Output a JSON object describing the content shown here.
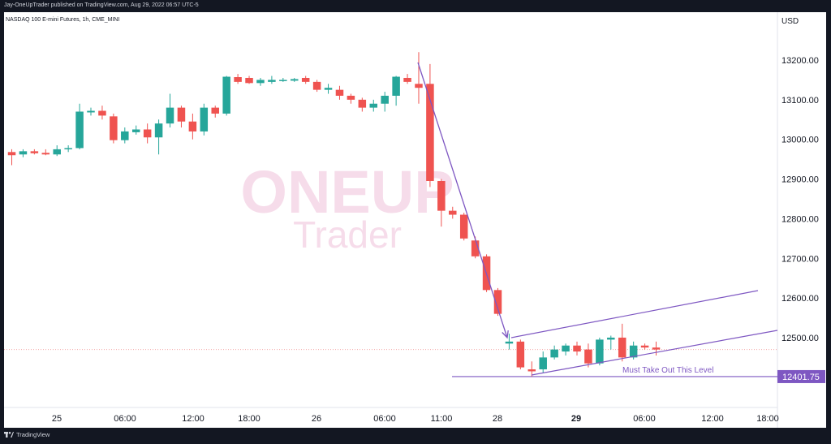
{
  "header": {
    "publish_text": "Jay-OneUpTrader published on TradingView.com, Aug 29, 2022 06:57 UTC-5"
  },
  "footer": {
    "brand": "TradingView"
  },
  "colors": {
    "up": "#26a69a",
    "down": "#ef5350",
    "annotation": "#7e57c2",
    "watermark": "#f3d6e6",
    "dotted_level": "#f4a9a9"
  },
  "watermark": {
    "line1": "ONEUP",
    "line2": "Trader"
  },
  "chart_data": {
    "type": "candlestick",
    "title": "NASDAQ 100 E-mini Futures, 1h, CME_MINI",
    "currency": "USD",
    "ylim": [
      12386,
      13300
    ],
    "y_ticks": [
      "13200.00",
      "13100.00",
      "13000.00",
      "12900.00",
      "12800.00",
      "12700.00",
      "12600.00",
      "12500.00"
    ],
    "x_ticks": [
      "25",
      "06:00",
      "12:00",
      "18:00",
      "26",
      "06:00",
      "11:00",
      "28",
      "29",
      "06:00",
      "12:00",
      "18:00"
    ],
    "x_tick_bold": [
      false,
      false,
      false,
      false,
      false,
      false,
      false,
      false,
      true,
      false,
      false,
      false
    ],
    "level_label": "12401.75",
    "level_value": 12401.75,
    "dotted_level_value": 12470,
    "annotation_text": "Must Take Out This Level",
    "candles": [
      {
        "o": 12968,
        "h": 12975,
        "l": 12935,
        "c": 12960
      },
      {
        "o": 12962,
        "h": 12975,
        "l": 12955,
        "c": 12970
      },
      {
        "o": 12970,
        "h": 12975,
        "l": 12962,
        "c": 12965
      },
      {
        "o": 12966,
        "h": 12975,
        "l": 12960,
        "c": 12962
      },
      {
        "o": 12962,
        "h": 12985,
        "l": 12958,
        "c": 12975
      },
      {
        "o": 12975,
        "h": 12985,
        "l": 12968,
        "c": 12978
      },
      {
        "o": 12978,
        "h": 13090,
        "l": 12975,
        "c": 13070
      },
      {
        "o": 13068,
        "h": 13080,
        "l": 13060,
        "c": 13072
      },
      {
        "o": 13072,
        "h": 13085,
        "l": 13050,
        "c": 13060
      },
      {
        "o": 13058,
        "h": 13065,
        "l": 12990,
        "c": 12998
      },
      {
        "o": 12998,
        "h": 13030,
        "l": 12990,
        "c": 13020
      },
      {
        "o": 13018,
        "h": 13035,
        "l": 13012,
        "c": 13025
      },
      {
        "o": 13025,
        "h": 13040,
        "l": 12990,
        "c": 13005
      },
      {
        "o": 13005,
        "h": 13050,
        "l": 12962,
        "c": 13040
      },
      {
        "o": 13040,
        "h": 13115,
        "l": 13030,
        "c": 13080
      },
      {
        "o": 13080,
        "h": 13085,
        "l": 13030,
        "c": 13045
      },
      {
        "o": 13045,
        "h": 13065,
        "l": 13000,
        "c": 13020
      },
      {
        "o": 13020,
        "h": 13090,
        "l": 13010,
        "c": 13080
      },
      {
        "o": 13080,
        "h": 13085,
        "l": 13055,
        "c": 13065
      },
      {
        "o": 13065,
        "h": 13160,
        "l": 13060,
        "c": 13158
      },
      {
        "o": 13157,
        "h": 13165,
        "l": 13140,
        "c": 13145
      },
      {
        "o": 13155,
        "h": 13160,
        "l": 13140,
        "c": 13142
      },
      {
        "o": 13142,
        "h": 13155,
        "l": 13135,
        "c": 13150
      },
      {
        "o": 13145,
        "h": 13160,
        "l": 13140,
        "c": 13150
      },
      {
        "o": 13150,
        "h": 13155,
        "l": 13145,
        "c": 13150
      },
      {
        "o": 13148,
        "h": 13155,
        "l": 13145,
        "c": 13152
      },
      {
        "o": 13155,
        "h": 13160,
        "l": 13140,
        "c": 13145
      },
      {
        "o": 13145,
        "h": 13150,
        "l": 13120,
        "c": 13125
      },
      {
        "o": 13125,
        "h": 13140,
        "l": 13115,
        "c": 13130
      },
      {
        "o": 13125,
        "h": 13135,
        "l": 13100,
        "c": 13110
      },
      {
        "o": 13110,
        "h": 13115,
        "l": 13090,
        "c": 13100
      },
      {
        "o": 13100,
        "h": 13105,
        "l": 13070,
        "c": 13080
      },
      {
        "o": 13080,
        "h": 13100,
        "l": 13070,
        "c": 13090
      },
      {
        "o": 13090,
        "h": 13120,
        "l": 13070,
        "c": 13110
      },
      {
        "o": 13110,
        "h": 13160,
        "l": 13085,
        "c": 13158
      },
      {
        "o": 13155,
        "h": 13165,
        "l": 13140,
        "c": 13145
      },
      {
        "o": 13140,
        "h": 13220,
        "l": 13090,
        "c": 13130
      },
      {
        "o": 13140,
        "h": 13190,
        "l": 12880,
        "c": 12895
      },
      {
        "o": 12895,
        "h": 12900,
        "l": 12780,
        "c": 12820
      },
      {
        "o": 12820,
        "h": 12830,
        "l": 12800,
        "c": 12810
      },
      {
        "o": 12810,
        "h": 12815,
        "l": 12745,
        "c": 12750
      },
      {
        "o": 12745,
        "h": 12755,
        "l": 12700,
        "c": 12705
      },
      {
        "o": 12705,
        "h": 12710,
        "l": 12615,
        "c": 12620
      },
      {
        "o": 12620,
        "h": 12625,
        "l": 12555,
        "c": 12560
      },
      {
        "o": 12485,
        "h": 12510,
        "l": 12470,
        "c": 12490
      },
      {
        "o": 12490,
        "h": 12495,
        "l": 12420,
        "c": 12425
      },
      {
        "o": 12420,
        "h": 12440,
        "l": 12402,
        "c": 12415
      },
      {
        "o": 12420,
        "h": 12465,
        "l": 12410,
        "c": 12450
      },
      {
        "o": 12450,
        "h": 12480,
        "l": 12445,
        "c": 12470
      },
      {
        "o": 12465,
        "h": 12485,
        "l": 12455,
        "c": 12480
      },
      {
        "o": 12480,
        "h": 12490,
        "l": 12455,
        "c": 12465
      },
      {
        "o": 12470,
        "h": 12485,
        "l": 12425,
        "c": 12435
      },
      {
        "o": 12435,
        "h": 12500,
        "l": 12430,
        "c": 12495
      },
      {
        "o": 12495,
        "h": 12505,
        "l": 12470,
        "c": 12500
      },
      {
        "o": 12500,
        "h": 12535,
        "l": 12440,
        "c": 12450
      },
      {
        "o": 12450,
        "h": 12490,
        "l": 12445,
        "c": 12480
      },
      {
        "o": 12480,
        "h": 12485,
        "l": 12470,
        "c": 12475
      },
      {
        "o": 12475,
        "h": 12490,
        "l": 12455,
        "c": 12470
      }
    ]
  }
}
